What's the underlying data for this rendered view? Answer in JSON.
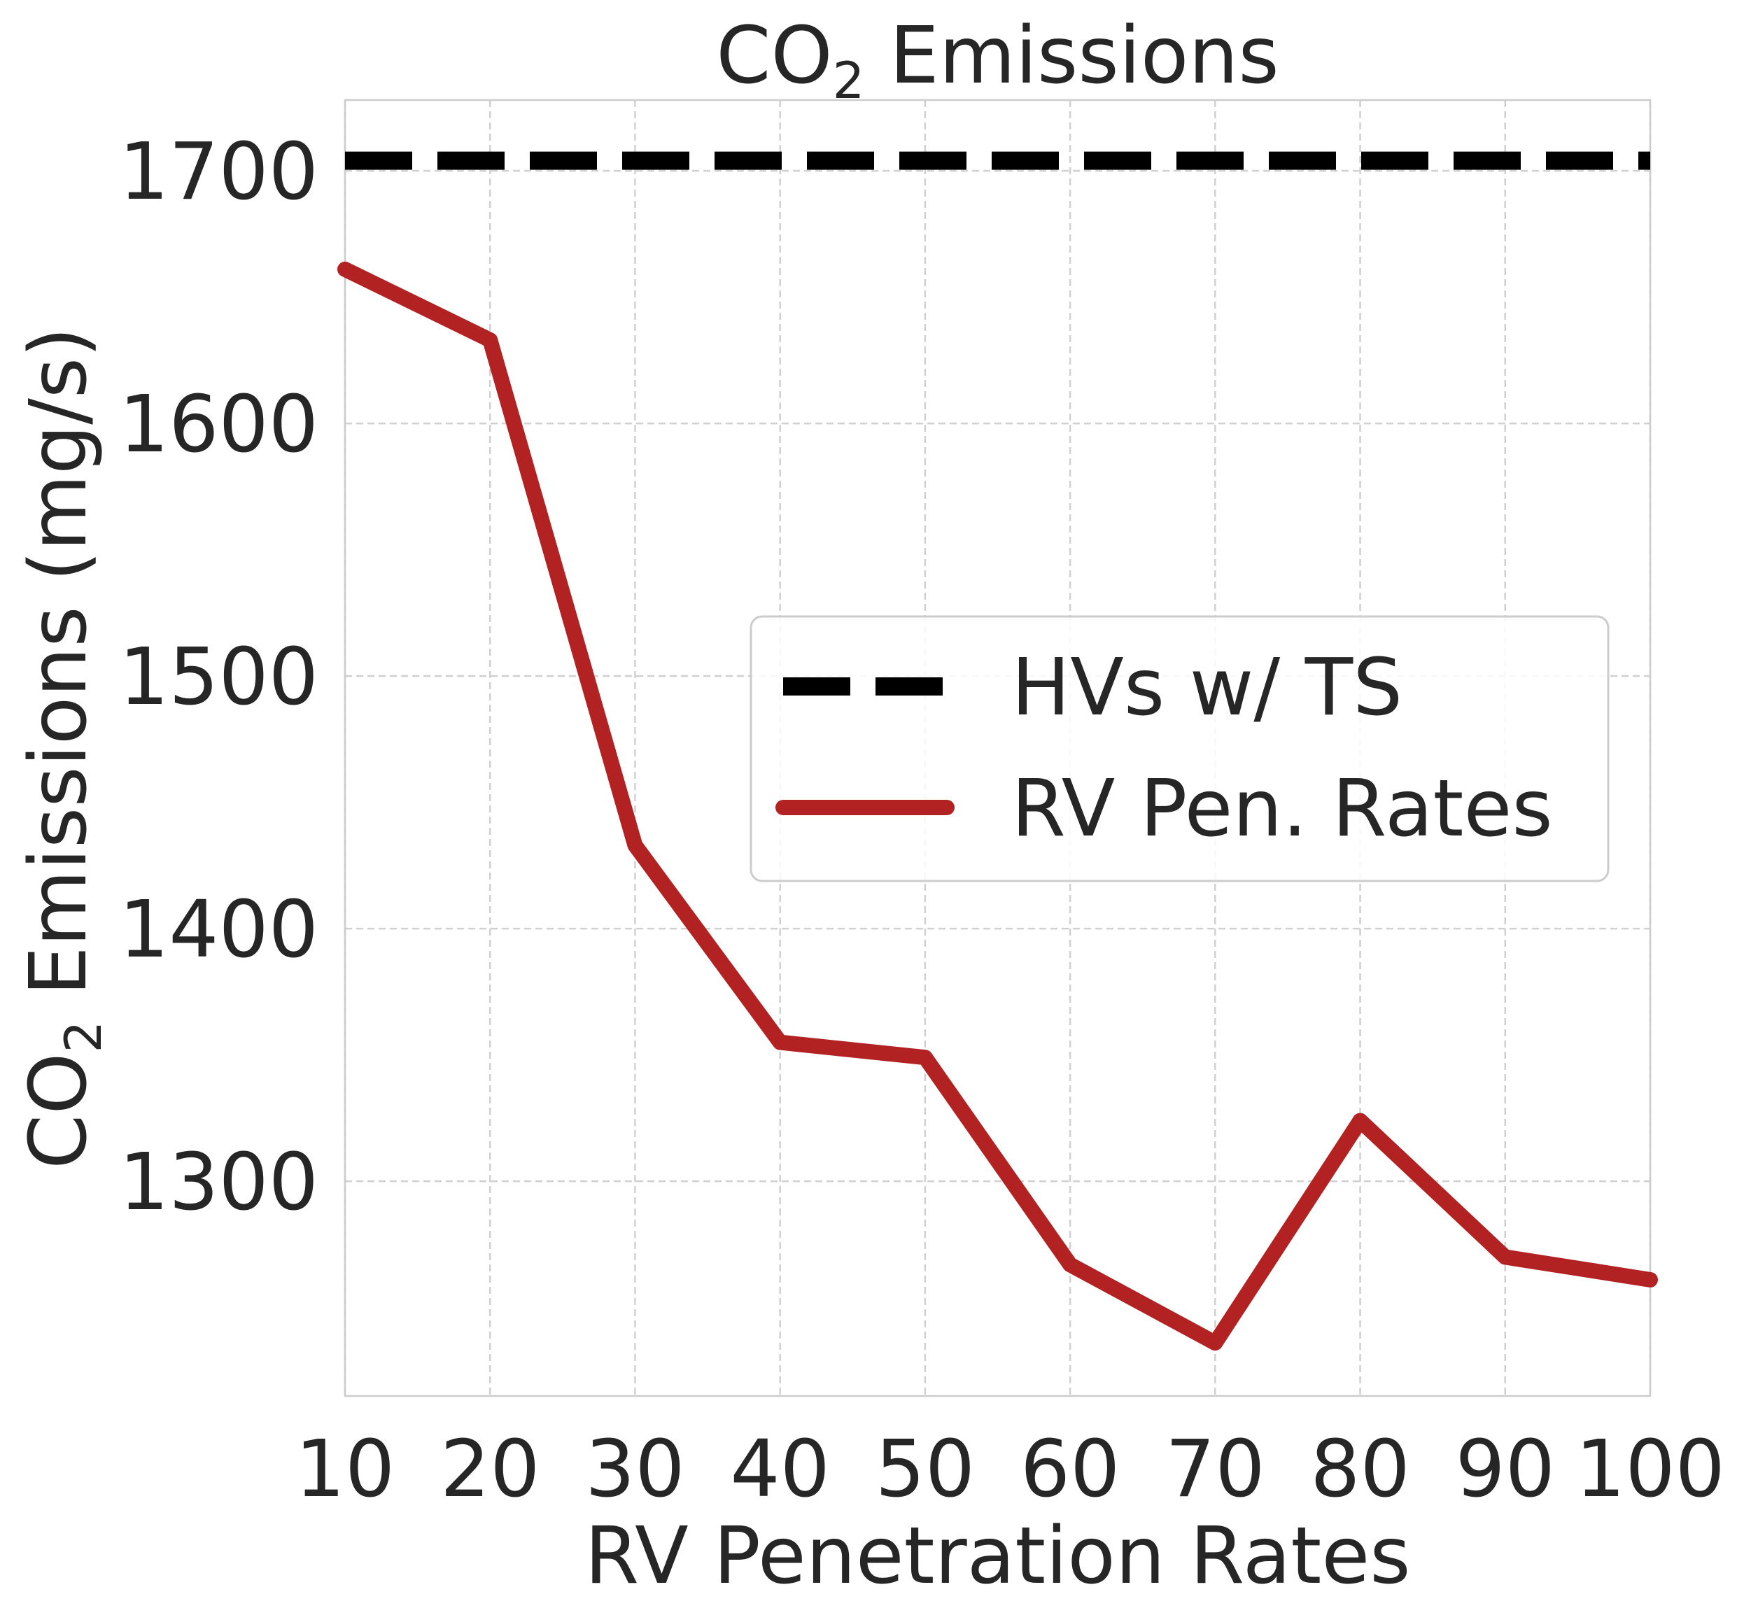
{
  "chart_data": {
    "type": "line",
    "title": {
      "main": "CO",
      "subscript": "2",
      "rest": " Emissions"
    },
    "xlabel": "RV Penetration Rates",
    "ylabel": {
      "main": "CO",
      "subscript": "2",
      "rest": " Emissions (mg/s)"
    },
    "xlim": [
      10,
      100
    ],
    "ylim": [
      1215,
      1728
    ],
    "x_ticks": [
      10,
      20,
      30,
      40,
      50,
      60,
      70,
      80,
      90,
      100
    ],
    "y_ticks": [
      1300,
      1400,
      1500,
      1600,
      1700
    ],
    "grid": true,
    "legend_position": "center-right",
    "series": [
      {
        "name": "HVs w/ TS",
        "style": "dashed",
        "color": "#000000",
        "x": [
          10,
          100
        ],
        "y": [
          1704,
          1704
        ]
      },
      {
        "name": "RV Pen. Rates",
        "style": "solid",
        "color": "#b22222",
        "x": [
          10,
          20,
          30,
          40,
          50,
          60,
          70,
          80,
          90,
          100
        ],
        "y": [
          1661,
          1633,
          1433,
          1355,
          1349,
          1267,
          1236,
          1324,
          1270,
          1261
        ]
      }
    ]
  }
}
